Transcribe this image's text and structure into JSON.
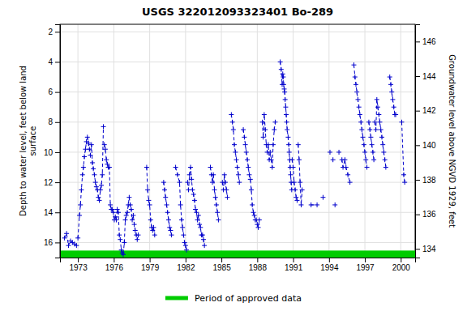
{
  "chart_data": {
    "type": "line",
    "title": "USGS 322012093323401 Bo-289",
    "ylabel": "Depth to water level, feet below land\nsurface",
    "y2label": "Groundwater level above NGVD 1929, feet",
    "ylim": [
      17.0,
      1.5
    ],
    "yticks": [
      2,
      4,
      6,
      8,
      10,
      12,
      14,
      16
    ],
    "y2lim": [
      133.5,
      147.0
    ],
    "y2ticks": [
      134,
      136,
      138,
      140,
      142,
      144,
      146
    ],
    "xlim": [
      1971.5,
      2001.2
    ],
    "xticks": [
      1973,
      1976,
      1979,
      1982,
      1985,
      1988,
      1991,
      1994,
      1997,
      2000
    ],
    "grid": true,
    "annotations": [
      {
        "text": "Period of approved data",
        "color": "#00cc00"
      }
    ],
    "x": [
      1971.88,
      1972.05,
      1972.21,
      1972.38,
      1972.54,
      1972.71,
      1972.88,
      null,
      1973.0,
      1973.13,
      1973.21,
      1973.29,
      1973.38,
      1973.46,
      1973.54,
      1973.63,
      1973.71,
      null,
      1973.79,
      1973.88,
      1973.96,
      1974.04,
      1974.13,
      1974.21,
      1974.29,
      1974.38,
      1974.46,
      1974.54,
      1974.63,
      1974.71,
      1974.79,
      1974.88,
      1974.96,
      1975.04,
      1975.13,
      null,
      1975.21,
      1975.29,
      1975.38,
      1975.46,
      1975.54,
      1975.63,
      1975.71,
      1975.79,
      1975.88,
      1975.96,
      1976.04,
      1976.13,
      1976.21,
      1976.29,
      1976.38,
      1976.46,
      1976.54,
      1976.63,
      1976.71,
      1976.79,
      1976.88,
      1976.96,
      1977.04,
      1977.13,
      1977.21,
      1977.29,
      1977.38,
      1977.46,
      1977.54,
      1977.63,
      1977.71,
      1977.79,
      1977.88,
      1977.96,
      1978.04,
      null,
      1978.75,
      1978.83,
      1978.92,
      1979.0,
      1979.08,
      1979.17,
      1979.25,
      1979.33,
      1979.42,
      null,
      1980.17,
      1980.25,
      1980.33,
      1980.42,
      1980.5,
      1980.58,
      1980.67,
      1980.75,
      1980.83,
      null,
      1981.17,
      1981.33,
      1981.5,
      1981.58,
      1981.67,
      1981.75,
      1981.83,
      1981.92,
      1982.0,
      1982.08,
      null,
      1982.17,
      1982.25,
      1982.33,
      1982.42,
      1982.5,
      1982.58,
      1982.67,
      1982.75,
      1982.83,
      1982.92,
      1983.0,
      1983.08,
      1983.17,
      1983.25,
      1983.33,
      1983.42,
      1983.5,
      1983.58,
      null,
      1984.08,
      1984.17,
      1984.25,
      1984.33,
      1984.42,
      1984.5,
      1984.58,
      1984.67,
      1984.75,
      null,
      1985.08,
      1985.17,
      1985.25,
      1985.33,
      1985.42,
      1985.5,
      null,
      1985.83,
      1985.92,
      1986.0,
      1986.08,
      1986.17,
      1986.25,
      1986.33,
      1986.42,
      1986.5,
      null,
      1986.83,
      1986.92,
      1987.0,
      1987.08,
      1987.17,
      1987.25,
      1987.33,
      1987.42,
      1987.5,
      1987.58,
      1987.67,
      1987.75,
      1987.83,
      1987.92,
      1988.0,
      1988.08,
      1988.17,
      null,
      1988.42,
      1988.5,
      1988.58,
      1988.67,
      1988.75,
      1988.83,
      1988.92,
      1989.0,
      1989.08,
      1989.17,
      1989.25,
      1989.33,
      1989.42,
      1989.5,
      null,
      1989.92,
      1990.0,
      1990.08,
      1990.13,
      1990.17,
      1990.21,
      1990.25,
      1990.29,
      1990.33,
      1990.38,
      1990.42,
      1990.46,
      1990.5,
      1990.58,
      1990.63,
      1990.67,
      1990.71,
      1990.75,
      1990.79,
      1990.83,
      1990.88,
      null,
      1990.92,
      1991.0,
      1991.08,
      1991.17,
      1991.25,
      1991.33,
      null,
      1991.42,
      1991.5,
      1991.58,
      1991.67,
      1991.75,
      null,
      1992.5,
      1993.0,
      null,
      1993.5,
      null,
      1994.08,
      null,
      1994.33,
      null,
      1994.5,
      null,
      1994.83,
      null,
      1995.08,
      1995.17,
      1995.33,
      1995.42,
      1995.58,
      1995.75,
      null,
      1996.08,
      1996.17,
      1996.25,
      1996.33,
      1996.42,
      1996.5,
      1996.58,
      1996.67,
      1996.75,
      1996.83,
      1996.92,
      1997.0,
      1997.08,
      1997.17,
      null,
      1997.33,
      1997.42,
      1997.5,
      1997.58,
      1997.67,
      1997.75,
      null,
      1997.83,
      1997.92,
      1998.0,
      1998.08,
      1998.17,
      1998.25,
      1998.33,
      1998.42,
      1998.5,
      1998.58,
      1998.67,
      1998.75,
      null,
      1999.08,
      1999.17,
      1999.25,
      1999.33,
      1999.42,
      1999.5,
      1999.58,
      null,
      2000.08,
      2000.25,
      2000.33
    ],
    "series": [
      {
        "color": "#0000cc",
        "marker": "plus",
        "line_style": "dashed",
        "values": [
          15.7,
          15.4,
          16.2,
          15.9,
          16.0,
          16.1,
          16.2,
          null,
          15.7,
          14.2,
          13.5,
          12.5,
          11.5,
          11.0,
          10.3,
          9.8,
          9.3,
          null,
          9.0,
          9.4,
          9.8,
          10.2,
          9.5,
          10.7,
          11.1,
          11.5,
          12.0,
          12.3,
          12.5,
          13.0,
          13.2,
          12.5,
          12.2,
          11.5,
          8.3,
          null,
          9.5,
          9.8,
          10.5,
          10.8,
          11.0,
          11.0,
          13.5,
          13.8,
          13.8,
          14.0,
          14.5,
          14.3,
          14.5,
          13.8,
          14.0,
          15.5,
          15.8,
          16.5,
          16.7,
          16.8,
          16.0,
          14.5,
          14.2,
          14.0,
          13.5,
          13.0,
          13.5,
          13.8,
          14.5,
          14.2,
          14.8,
          15.2,
          15.5,
          15.8,
          15.5,
          null,
          11.0,
          12.5,
          13.2,
          13.5,
          14.5,
          15.0,
          15.2,
          15.0,
          15.5,
          null,
          12.0,
          12.5,
          13.0,
          13.5,
          14.0,
          14.5,
          15.0,
          15.2,
          15.5,
          null,
          11.0,
          11.5,
          12.0,
          13.5,
          14.5,
          15.0,
          15.5,
          16.0,
          16.2,
          16.5,
          null,
          12.0,
          12.5,
          11.5,
          11.0,
          11.8,
          12.5,
          12.8,
          13.2,
          13.8,
          14.0,
          14.5,
          14.2,
          14.8,
          15.0,
          15.5,
          15.5,
          15.8,
          16.2,
          null,
          11.0,
          11.5,
          12.0,
          11.5,
          12.5,
          13.0,
          13.5,
          14.0,
          14.5,
          null,
          12.0,
          12.5,
          11.5,
          12.0,
          12.5,
          13.0,
          null,
          7.5,
          8.0,
          8.5,
          9.5,
          10.0,
          10.5,
          11.0,
          11.5,
          12.0,
          null,
          8.5,
          9.0,
          9.5,
          10.0,
          10.5,
          11.0,
          11.5,
          11.8,
          12.5,
          13.5,
          14.0,
          14.2,
          14.5,
          14.5,
          14.8,
          15.0,
          14.5,
          null,
          8.0,
          9.0,
          7.5,
          8.5,
          9.5,
          10.0,
          9.5,
          10.5,
          10.0,
          10.5,
          11.0,
          9.5,
          8.5,
          8.0,
          null,
          4.0,
          4.5,
          5.5,
          4.8,
          5.0,
          5.5,
          5.8,
          6.0,
          6.5,
          7.0,
          7.5,
          8.0,
          8.5,
          9.0,
          9.5,
          10.0,
          10.5,
          11.0,
          11.5,
          12.0,
          12.5,
          null,
          10.5,
          11.0,
          12.0,
          12.5,
          13.0,
          13.2,
          null,
          9.5,
          10.5,
          12.0,
          13.5,
          12.5,
          null,
          13.5,
          13.5,
          null,
          13.0,
          null,
          10.0,
          null,
          10.5,
          null,
          13.5,
          null,
          10.0,
          null,
          10.5,
          11.0,
          10.5,
          11.0,
          11.5,
          12.0,
          null,
          4.2,
          5.0,
          5.5,
          6.0,
          6.5,
          7.0,
          7.5,
          8.0,
          8.5,
          9.0,
          9.5,
          10.0,
          10.5,
          11.0,
          null,
          8.0,
          8.5,
          9.0,
          9.5,
          10.0,
          10.5,
          null,
          8.0,
          8.5,
          6.5,
          7.0,
          7.5,
          8.0,
          8.5,
          9.0,
          9.5,
          10.0,
          10.5,
          11.0,
          null,
          5.0,
          5.5,
          6.0,
          6.5,
          7.0,
          7.5,
          7.5,
          null,
          8.0,
          11.5,
          12.0
        ]
      }
    ]
  }
}
